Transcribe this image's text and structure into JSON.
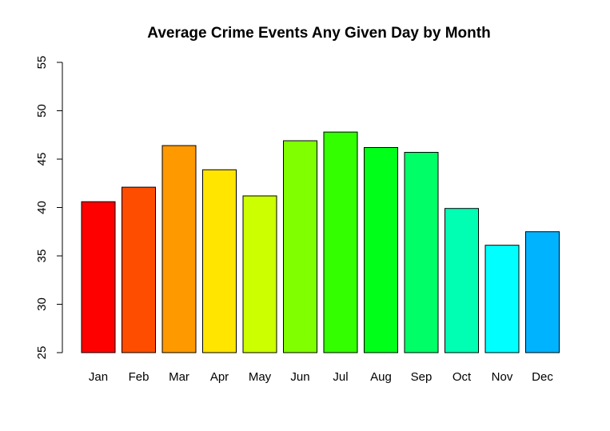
{
  "chart_data": {
    "type": "bar",
    "title": "Average Crime Events Any Given Day by Month",
    "xlabel": "",
    "ylabel": "",
    "categories": [
      "Jan",
      "Feb",
      "Mar",
      "Apr",
      "May",
      "Jun",
      "Jul",
      "Aug",
      "Sep",
      "Oct",
      "Nov",
      "Dec"
    ],
    "values": [
      40.6,
      42.1,
      46.4,
      43.9,
      41.2,
      46.9,
      47.8,
      46.2,
      45.7,
      39.9,
      36.1,
      37.5
    ],
    "colors": [
      "#FF0000",
      "#FF4D00",
      "#FF9900",
      "#FFE500",
      "#CCFF00",
      "#80FF00",
      "#33FF00",
      "#00FF19",
      "#00FF66",
      "#00FFB2",
      "#00FFFF",
      "#00B3FF"
    ],
    "ylim": [
      25,
      55
    ],
    "yticks": [
      "25",
      "30",
      "35",
      "40",
      "45",
      "50",
      "55"
    ],
    "grid": false,
    "legend": "none"
  }
}
